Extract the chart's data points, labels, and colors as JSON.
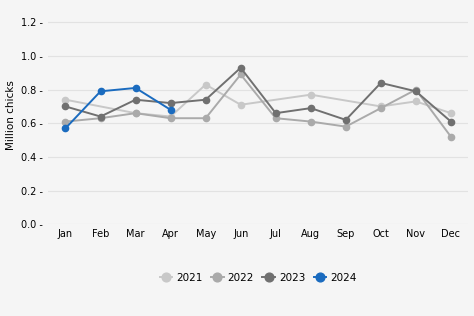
{
  "months": [
    "Jan",
    "Feb",
    "Mar",
    "Apr",
    "May",
    "Jun",
    "Jul",
    "Aug",
    "Sep",
    "Oct",
    "Nov",
    "Dec"
  ],
  "series": {
    "2021": [
      0.74,
      null,
      0.66,
      0.64,
      0.83,
      0.71,
      null,
      0.77,
      null,
      0.7,
      0.73,
      0.66
    ],
    "2022": [
      0.61,
      0.63,
      0.66,
      0.63,
      0.63,
      0.89,
      0.63,
      0.61,
      0.58,
      0.69,
      0.8,
      0.52
    ],
    "2023": [
      0.7,
      0.64,
      0.74,
      0.72,
      0.74,
      0.93,
      0.66,
      0.69,
      0.62,
      0.84,
      0.79,
      0.61
    ],
    "2024": [
      0.57,
      0.79,
      0.81,
      0.68,
      null,
      null,
      null,
      null,
      null,
      null,
      null,
      null
    ]
  },
  "colors": {
    "2021": "#c8c8c8",
    "2022": "#aaaaaa",
    "2023": "#707070",
    "2024": "#1a6bbf"
  },
  "ylabel": "Million chicks",
  "ylim": [
    0.0,
    1.3
  ],
  "yticks": [
    0.0,
    0.2,
    0.4,
    0.6,
    0.8,
    1.0,
    1.2
  ],
  "background_color": "#f5f5f5",
  "grid_color": "#e2e2e2",
  "marker_size": 4.5,
  "line_width": 1.4,
  "tick_fontsize": 7,
  "ylabel_fontsize": 7.5,
  "legend_fontsize": 7.5
}
